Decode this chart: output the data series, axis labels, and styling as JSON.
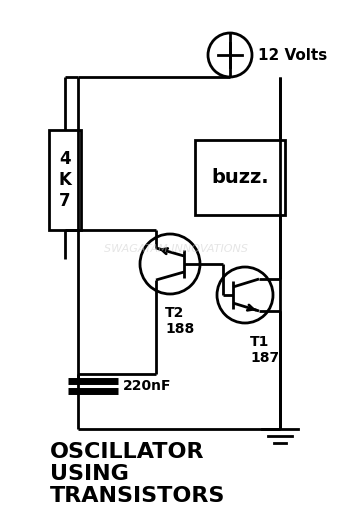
{
  "bg_color": "#ffffff",
  "line_color": "#000000",
  "watermark_color": "#cccccc",
  "watermark_text": "SWAGATAM INNOVATIONS",
  "title_text": "OSCILLATOR\nUSING\nTRANSISTORS",
  "title_fontsize": 16,
  "label_12v": "12 Volts",
  "label_resistor": "4\nK\n7",
  "label_buzzer": "buzz.",
  "label_t1": "T1\n187",
  "label_t2": "T2\n188",
  "label_cap": "220nF"
}
